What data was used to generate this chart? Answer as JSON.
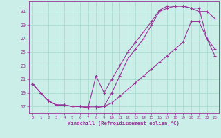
{
  "title": "",
  "xlabel": "Windchill (Refroidissement éolien,°C)",
  "bg_color": "#cceee8",
  "line_color": "#993399",
  "grid_color": "#aaddcc",
  "xlim": [
    -0.5,
    23.5
  ],
  "ylim": [
    16.0,
    32.5
  ],
  "xticks": [
    0,
    1,
    2,
    3,
    4,
    5,
    6,
    7,
    8,
    9,
    10,
    11,
    12,
    13,
    14,
    15,
    16,
    17,
    18,
    19,
    20,
    21,
    22,
    23
  ],
  "yticks": [
    17,
    19,
    21,
    23,
    25,
    27,
    29,
    31
  ],
  "series1_x": [
    0,
    1,
    2,
    3,
    4,
    5,
    6,
    7,
    8,
    9,
    10,
    11,
    12,
    13,
    14,
    15,
    16,
    17,
    18,
    19,
    20,
    21,
    22,
    23
  ],
  "series1_y": [
    20.3,
    19.0,
    17.8,
    17.2,
    17.2,
    17.0,
    17.0,
    17.0,
    17.0,
    17.0,
    19.0,
    21.5,
    24.0,
    25.5,
    27.0,
    29.0,
    31.0,
    31.5,
    31.8,
    31.8,
    31.5,
    31.0,
    31.0,
    30.0
  ],
  "series2_x": [
    0,
    1,
    2,
    3,
    4,
    5,
    6,
    7,
    8,
    9,
    10,
    11,
    12,
    13,
    14,
    15,
    16,
    17,
    18,
    19,
    20,
    21,
    22,
    23
  ],
  "series2_y": [
    20.3,
    19.0,
    17.8,
    17.2,
    17.2,
    17.0,
    17.0,
    16.8,
    21.5,
    19.0,
    21.0,
    23.0,
    25.0,
    26.5,
    28.0,
    29.5,
    31.2,
    31.8,
    31.8,
    31.8,
    31.5,
    31.5,
    27.0,
    25.5
  ],
  "series3_x": [
    0,
    1,
    2,
    3,
    4,
    5,
    6,
    7,
    8,
    9,
    10,
    11,
    12,
    13,
    14,
    15,
    16,
    17,
    18,
    19,
    20,
    21,
    22,
    23
  ],
  "series3_y": [
    20.3,
    19.0,
    17.8,
    17.2,
    17.2,
    17.0,
    17.0,
    16.8,
    16.8,
    17.0,
    17.5,
    18.5,
    19.5,
    20.5,
    21.5,
    22.5,
    23.5,
    24.5,
    25.5,
    26.5,
    29.5,
    29.5,
    27.0,
    24.5
  ]
}
